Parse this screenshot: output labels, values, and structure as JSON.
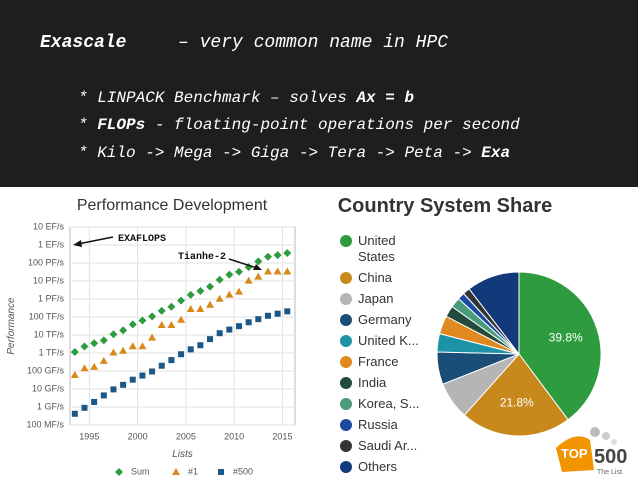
{
  "header": {
    "lines": [
      [
        {
          "text": "Exascale",
          "bold": true
        },
        {
          "text": "– very common name in HPC",
          "bold": false
        }
      ],
      [
        {
          "text": "* LINPACK Benchmark – solves ",
          "bold": false
        },
        {
          "text": "Ax = b",
          "bold": true
        }
      ],
      [
        {
          "text": "* ",
          "bold": false
        },
        {
          "text": "FLOPs",
          "bold": true
        },
        {
          "text": " - floating-point operations per second",
          "bold": false
        }
      ],
      [
        {
          "text": "* Kilo -> Mega -> Giga -> Tera -> Peta -> ",
          "bold": false
        },
        {
          "text": "Exa",
          "bold": true
        }
      ]
    ]
  },
  "chart_data": [
    {
      "type": "scatter",
      "title": "Performance Development",
      "x_label": "Lists",
      "y_label": "Performance",
      "log_y": true,
      "grid": true,
      "x": [
        1993.5,
        1994.5,
        1995.5,
        1996.5,
        1997.5,
        1998.5,
        1999.5,
        2000.5,
        2001.5,
        2002.5,
        2003.5,
        2004.5,
        2005.5,
        2006.5,
        2007.5,
        2008.5,
        2009.5,
        2010.5,
        2011.5,
        2012.5,
        2013.5,
        2014.5,
        2015.5
      ],
      "xlim": [
        1993,
        2016.3
      ],
      "xticks": [
        1995,
        2000,
        2005,
        2010,
        2015
      ],
      "ylim": [
        100000000.0,
        1e+19
      ],
      "yticks": [
        {
          "value": 100000000.0,
          "label": "100 MF/s"
        },
        {
          "value": 1000000000.0,
          "label": "1 GF/s"
        },
        {
          "value": 10000000000.0,
          "label": "10 GF/s"
        },
        {
          "value": 100000000000.0,
          "label": "100 GF/s"
        },
        {
          "value": 1000000000000.0,
          "label": "1 TF/s"
        },
        {
          "value": 10000000000000.0,
          "label": "10 TF/s"
        },
        {
          "value": 100000000000000.0,
          "label": "100 TF/s"
        },
        {
          "value": 1000000000000000.0,
          "label": "1 PF/s"
        },
        {
          "value": 1e+16,
          "label": "10 PF/s"
        },
        {
          "value": 1e+17,
          "label": "100 PF/s"
        },
        {
          "value": 1e+18,
          "label": "1 EF/s"
        },
        {
          "value": 1e+19,
          "label": "10 EF/s"
        }
      ],
      "series": [
        {
          "name": "Sum",
          "color": "#2e9b3e",
          "marker": "diamond",
          "values": [
            1130000000000.0,
            2300000000000.0,
            3500000000000.0,
            5000000000000.0,
            11000000000000.0,
            18000000000000.0,
            39000000000000.0,
            64000000000000.0,
            108000000000000.0,
            220000000000000.0,
            370000000000000.0,
            813000000000000.0,
            1690000000000000.0,
            2790000000000000.0,
            4900000000000000.0,
            1.17e+16,
            2.26e+16,
            3.24e+16,
            5.89e+16,
            1.23e+17,
            2.23e+17,
            2.74e+17,
            3.61e+17
          ]
        },
        {
          "name": "#1",
          "color": "#d8891a",
          "marker": "triangle",
          "values": [
            59700000000.0,
            143000000000.0,
            170000000000.0,
            368000000000.0,
            1070000000000.0,
            1340000000000.0,
            2380000000000.0,
            2380000000000.0,
            7200000000000.0,
            35900000000000.0,
            35900000000000.0,
            70700000000000.0,
            280000000000000.0,
            280000000000000.0,
            478000000000000.0,
            1030000000000000.0,
            1760000000000000.0,
            2570000000000000.0,
            1.05e+16,
            1.76e+16,
            3.39e+16,
            3.39e+16,
            3.39e+16
          ]
        },
        {
          "name": "#500",
          "color": "#1b5787",
          "marker": "square",
          "values": [
            420000000.0,
            900000000.0,
            1900000000.0,
            4400000000.0,
            9500000000.0,
            17000000000.0,
            33000000000.0,
            56000000000.0,
            94000000000.0,
            196000000000.0,
            403000000000.0,
            851000000000.0,
            1600000000000.0,
            2700000000000.0,
            5900000000000.0,
            12600000000000.0,
            20000000000000.0,
            31000000000000.0,
            51000000000000.0,
            76000000000000.0,
            117000000000000.0,
            153000000000000.0,
            206000000000000.0
          ]
        }
      ],
      "annotations": [
        "EXAFLOPS",
        "Tianhe-2"
      ]
    },
    {
      "type": "pie",
      "title": "Country System Share",
      "categories": [
        "United States",
        "China",
        "Japan",
        "Germany",
        "United K...",
        "France",
        "India",
        "Korea, S...",
        "Russia",
        "Saudi Ar...",
        "Others"
      ],
      "values": [
        39.8,
        21.8,
        7.4,
        6.4,
        3.6,
        3.6,
        2.2,
        2,
        1.4,
        1.4,
        10.4
      ],
      "value_labels": [
        "39.8%",
        "21.8%",
        null,
        null,
        null,
        null,
        null,
        null,
        null,
        null,
        null
      ],
      "colors": [
        "#2e9b3e",
        "#c8891c",
        "#b5b5b5",
        "#1a4d78",
        "#1e93a8",
        "#e0891e",
        "#234a3a",
        "#4a9a7c",
        "#1b4aa0",
        "#333333",
        "#12397a"
      ]
    }
  ],
  "logo": {
    "top": "TOP",
    "number": "500",
    "tagline": "The List."
  }
}
